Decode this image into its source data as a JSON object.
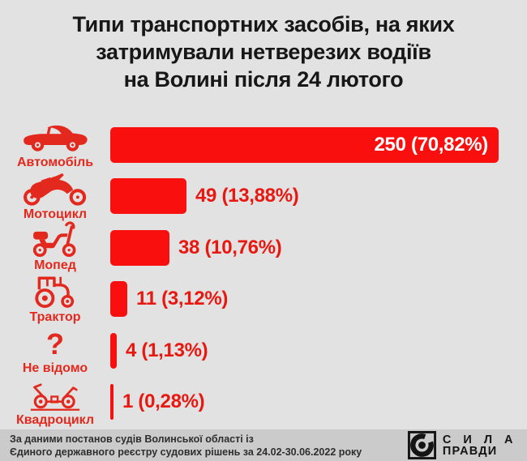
{
  "title_lines": [
    "Типи транспортних засобів, на яких",
    "затримували нетверезих водіїв",
    "на Волині після 24 лютого"
  ],
  "chart_data": {
    "type": "bar",
    "orientation": "horizontal",
    "title": "Типи транспортних засобів, на яких затримували нетверезих водіїв на Волині після 24 лютого",
    "categories": [
      "Автомобіль",
      "Мотоцикл",
      "Мопед",
      "Трактор",
      "Не відомо",
      "Квадроцикл"
    ],
    "values": [
      250,
      49,
      38,
      11,
      4,
      1
    ],
    "percent_labels": [
      "70,82%",
      "13,88%",
      "10,76%",
      "3,12%",
      "1,13%",
      "0,28%"
    ],
    "value_labels": [
      "250 (70,82%)",
      "49 (13,88%)",
      "38 (10,76%)",
      "11 (3,12%)",
      "4 (1,13%)",
      "1 (0,28%)"
    ],
    "xlim": [
      0,
      250
    ],
    "grid": "off",
    "legend": "none",
    "bar_color": "#fa0f0f",
    "category_color": "#e3281d",
    "value_label_color": "#e8170f",
    "value_label_inside_color": "#ffffff",
    "icons": [
      "car-icon",
      "motorcycle-icon",
      "moped-icon",
      "tractor-icon",
      "question-mark-icon",
      "quad-bike-icon"
    ],
    "question_glyph": "?"
  },
  "footer": {
    "source_line1": "За даними постанов судів Волинської області із",
    "source_line2": "Єдиного державного реєстру судових рішень за 24.02-30.06.2022 року",
    "logo_line1": "С И Л А",
    "logo_line2": "ПРАВДИ"
  },
  "colors": {
    "background": "#e2e2e2",
    "footer_background": "#cbcbcb",
    "title_text": "#171717",
    "footer_text": "#2e2e2e",
    "logo": "#141414"
  }
}
